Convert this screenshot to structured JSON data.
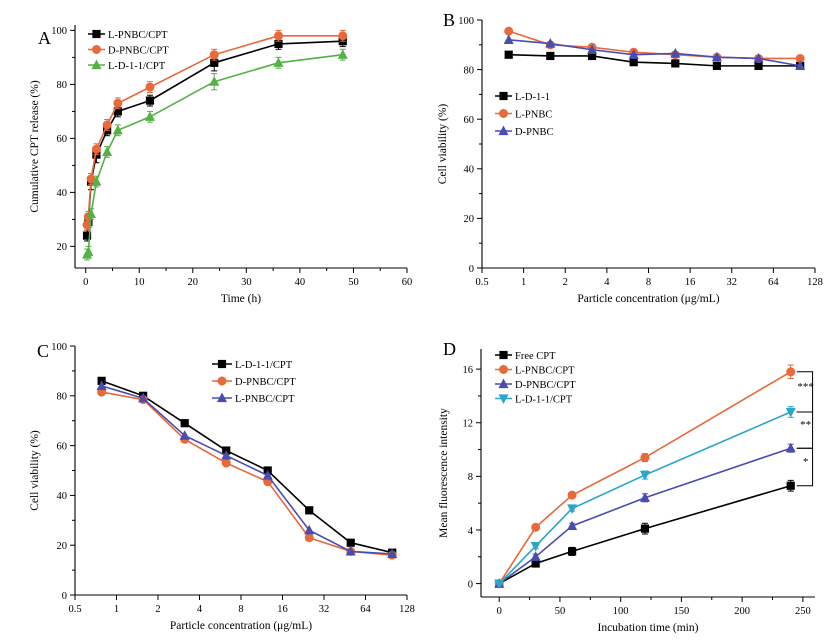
{
  "chart_data": [
    {
      "panel": "A",
      "type": "line",
      "xscale": "linear",
      "xlabel": "Time (h)",
      "ylabel": "Cumulative CPT release (%)",
      "xlim": [
        -2,
        60
      ],
      "ylim": [
        12,
        102
      ],
      "xticks": [
        0,
        10,
        20,
        30,
        40,
        50,
        60
      ],
      "yticks": [
        20,
        40,
        60,
        80,
        100
      ],
      "legend_position": "top-left",
      "series": [
        {
          "name": "L-PNBC/CPT",
          "color": "#000000",
          "marker": "square",
          "x": [
            0.25,
            0.5,
            1,
            2,
            4,
            6,
            12,
            24,
            36,
            48
          ],
          "y": [
            24,
            29,
            44,
            54,
            63,
            70,
            74,
            88,
            95,
            96
          ],
          "err": [
            2,
            2,
            3,
            3,
            2,
            2,
            2,
            3,
            2,
            2
          ]
        },
        {
          "name": "D-PNBC/CPT",
          "color": "#e8693a",
          "marker": "circle",
          "x": [
            0.25,
            0.5,
            1,
            2,
            4,
            6,
            12,
            24,
            36,
            48
          ],
          "y": [
            28,
            31,
            45,
            56,
            65,
            73,
            79,
            91,
            98,
            98
          ],
          "err": [
            2,
            2,
            2,
            2,
            2,
            2,
            2,
            2,
            2,
            2
          ]
        },
        {
          "name": "L-D-1-1/CPT",
          "color": "#55b047",
          "marker": "triangle",
          "x": [
            0.25,
            0.5,
            1,
            2,
            4,
            6,
            12,
            24,
            36,
            48
          ],
          "y": [
            17,
            18,
            32,
            44,
            55,
            63,
            68,
            81,
            88,
            91
          ],
          "err": [
            2,
            2,
            2,
            2,
            2,
            2,
            2,
            3,
            2,
            2
          ]
        }
      ]
    },
    {
      "panel": "B",
      "type": "line",
      "xscale": "log2",
      "xlabel": "Particle concentration (μg/mL)",
      "ylabel": "Cell viability (%)",
      "xlim": [
        0.5,
        128
      ],
      "ylim": [
        0,
        100
      ],
      "xticks": [
        0.5,
        1,
        2,
        4,
        8,
        16,
        32,
        64,
        128
      ],
      "xticklabels": [
        "0.5",
        "1",
        "2",
        "4",
        "8",
        "16",
        "32",
        "64",
        "128"
      ],
      "yticks": [
        0,
        20,
        40,
        60,
        80,
        100
      ],
      "legend_position": "center-left",
      "series": [
        {
          "name": "L-D-1-1",
          "color": "#000000",
          "marker": "square",
          "x": [
            0.78,
            1.56,
            3.125,
            6.25,
            12.5,
            25,
            50,
            100
          ],
          "y": [
            86,
            85.5,
            85.5,
            83,
            82.5,
            81.5,
            81.5,
            81.5
          ]
        },
        {
          "name": "L-PNBC",
          "color": "#e8693a",
          "marker": "circle",
          "x": [
            0.78,
            1.56,
            3.125,
            6.25,
            12.5,
            25,
            50,
            100
          ],
          "y": [
            95.5,
            90,
            89,
            87,
            86,
            85,
            84.5,
            84.5
          ]
        },
        {
          "name": "D-PNBC",
          "color": "#4a4db0",
          "marker": "triangle",
          "x": [
            0.78,
            1.56,
            3.125,
            6.25,
            12.5,
            25,
            50,
            100
          ],
          "y": [
            92,
            90.5,
            88,
            86,
            86.5,
            85,
            84.5,
            81.5
          ]
        }
      ]
    },
    {
      "panel": "C",
      "type": "line",
      "xscale": "log2",
      "xlabel": "Particle concentration (μg/mL)",
      "ylabel": "Cell viability (%)",
      "xlim": [
        0.5,
        128
      ],
      "ylim": [
        0,
        100
      ],
      "xticks": [
        0.5,
        1,
        2,
        4,
        8,
        16,
        32,
        64,
        128
      ],
      "xticklabels": [
        "0.5",
        "1",
        "2",
        "4",
        "8",
        "16",
        "32",
        "64",
        "128"
      ],
      "yticks": [
        0,
        20,
        40,
        60,
        80,
        100
      ],
      "legend_position": "top-right",
      "series": [
        {
          "name": "L-D-1-1/CPT",
          "color": "#000000",
          "marker": "square",
          "x": [
            0.78,
            1.56,
            3.125,
            6.25,
            12.5,
            25,
            50,
            100
          ],
          "y": [
            86,
            80,
            69,
            58,
            50,
            34,
            21,
            17
          ]
        },
        {
          "name": "D-PNBC/CPT",
          "color": "#e8693a",
          "marker": "circle",
          "x": [
            0.78,
            1.56,
            3.125,
            6.25,
            12.5,
            25,
            50,
            100
          ],
          "y": [
            81.5,
            78.5,
            62.5,
            53,
            45.5,
            23,
            17.5,
            16
          ]
        },
        {
          "name": "L-PNBC/CPT",
          "color": "#4a4db0",
          "marker": "triangle",
          "x": [
            0.78,
            1.56,
            3.125,
            6.25,
            12.5,
            25,
            50,
            100
          ],
          "y": [
            84,
            79,
            64,
            56,
            48,
            26,
            17.5,
            16.5
          ]
        }
      ]
    },
    {
      "panel": "D",
      "type": "line",
      "xscale": "linear",
      "xlabel": "Incubation time (min)",
      "ylabel": "Mean fluorescence intensity",
      "xlim": [
        -15,
        260
      ],
      "ylim": [
        -1,
        17.5
      ],
      "xticks": [
        0,
        50,
        100,
        150,
        200,
        250
      ],
      "yticks": [
        0,
        4,
        8,
        12,
        16
      ],
      "legend_position": "top-left",
      "significance": [
        "***",
        "**",
        "*"
      ],
      "series": [
        {
          "name": "Free CPT",
          "color": "#000000",
          "marker": "square",
          "x": [
            0,
            30,
            60,
            120,
            240
          ],
          "y": [
            0,
            1.5,
            2.4,
            4.1,
            7.3
          ],
          "err": [
            0.1,
            0.2,
            0.3,
            0.4,
            0.4
          ]
        },
        {
          "name": "L-PNBC/CPT",
          "color": "#e8693a",
          "marker": "circle",
          "x": [
            0,
            30,
            60,
            120,
            240
          ],
          "y": [
            0,
            4.2,
            6.6,
            9.4,
            15.8
          ],
          "err": [
            0.1,
            0.2,
            0.2,
            0.3,
            0.5
          ]
        },
        {
          "name": "D-PNBC/CPT",
          "color": "#4a4db0",
          "marker": "triangle",
          "x": [
            0,
            30,
            60,
            120,
            240
          ],
          "y": [
            0,
            2.0,
            4.3,
            6.4,
            10.1
          ],
          "err": [
            0.1,
            0.2,
            0.2,
            0.3,
            0.3
          ]
        },
        {
          "name": "L-D-1-1/CPT",
          "color": "#2aa6c9",
          "marker": "triangle-down",
          "x": [
            0,
            30,
            60,
            120,
            240
          ],
          "y": [
            0,
            2.8,
            5.6,
            8.1,
            12.8
          ],
          "err": [
            0.1,
            0.2,
            0.2,
            0.3,
            0.4
          ]
        }
      ]
    }
  ]
}
